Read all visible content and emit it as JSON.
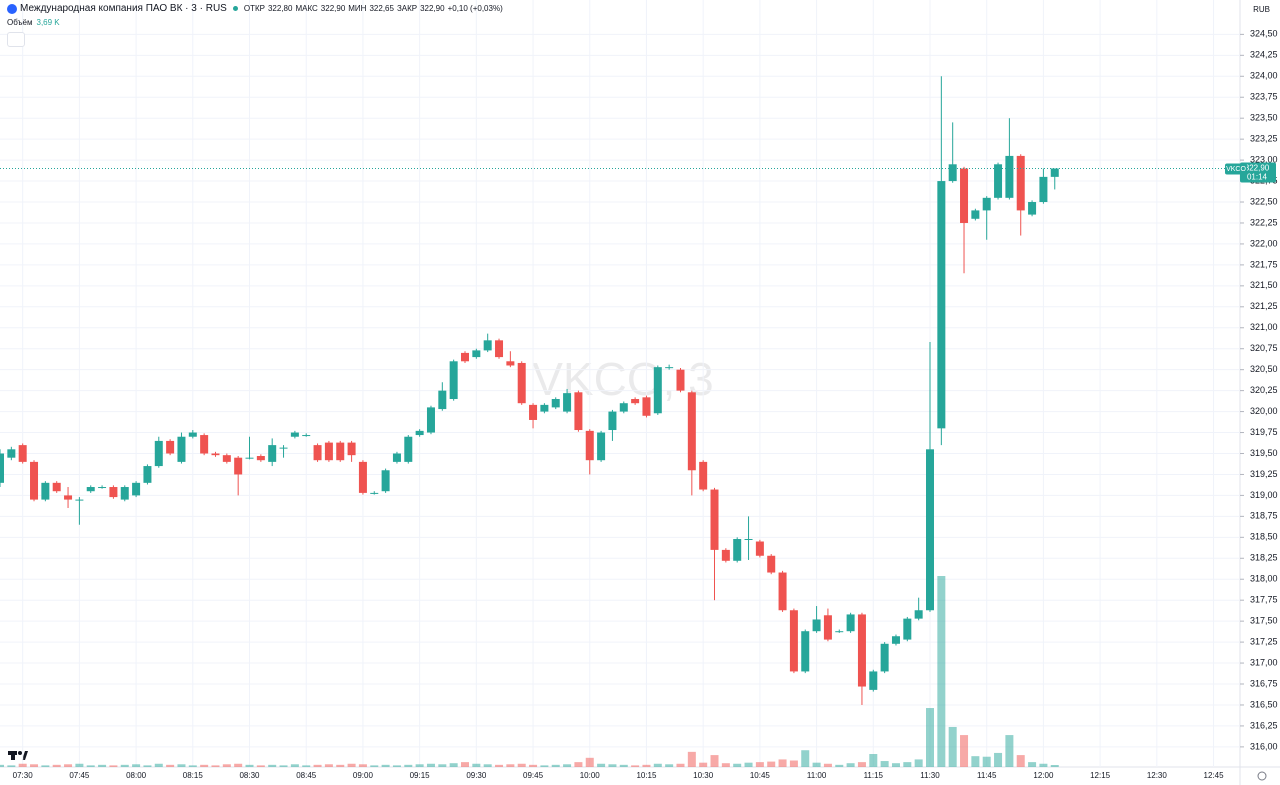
{
  "header": {
    "title": "Международная компания ПАО ВК · 3 · RUS",
    "open_label": "ОТКР",
    "open": "322,80",
    "high_label": "МАКС",
    "high": "322,90",
    "low_label": "МИН",
    "low": "322,65",
    "close_label": "ЗАКР",
    "close": "322,90",
    "change": "+0,10 (+0,03%)",
    "volume_label": "Объём",
    "volume_value": "3,69 K",
    "currency": "RUB"
  },
  "chart_data": {
    "type": "candlestick",
    "watermark": "VKCO, 3",
    "up_color": "#26a69a",
    "down_color": "#ef5350",
    "grid": true,
    "x": [
      "07:24",
      "07:27",
      "07:30",
      "07:33",
      "07:36",
      "07:39",
      "07:42",
      "07:45",
      "07:48",
      "07:51",
      "07:54",
      "07:57",
      "08:00",
      "08:03",
      "08:06",
      "08:09",
      "08:12",
      "08:15",
      "08:18",
      "08:21",
      "08:24",
      "08:27",
      "08:30",
      "08:33",
      "08:36",
      "08:39",
      "08:42",
      "08:45",
      "08:48",
      "08:51",
      "08:54",
      "08:57",
      "09:00",
      "09:03",
      "09:06",
      "09:09",
      "09:12",
      "09:15",
      "09:18",
      "09:21",
      "09:24",
      "09:27",
      "09:30",
      "09:33",
      "09:36",
      "09:39",
      "09:42",
      "09:45",
      "09:48",
      "09:51",
      "09:54",
      "09:57",
      "10:00",
      "10:03",
      "10:06",
      "10:09",
      "10:12",
      "10:15",
      "10:18",
      "10:21",
      "10:24",
      "10:27",
      "10:30",
      "10:33",
      "10:36",
      "10:39",
      "10:42",
      "10:45",
      "10:48",
      "10:51",
      "10:54",
      "10:57",
      "11:00",
      "11:03",
      "11:06",
      "11:09",
      "11:12",
      "11:15",
      "11:18",
      "11:21",
      "11:24",
      "11:27",
      "11:30",
      "11:33",
      "11:36",
      "11:39",
      "11:42",
      "11:45",
      "11:48",
      "11:51",
      "11:54",
      "11:57",
      "12:00",
      "12:03"
    ],
    "open": [
      319.15,
      319.45,
      319.6,
      319.4,
      318.95,
      319.15,
      319.0,
      318.95,
      319.05,
      319.1,
      319.1,
      318.95,
      319.0,
      319.15,
      319.35,
      319.65,
      319.4,
      319.7,
      319.72,
      319.5,
      319.48,
      319.45,
      319.45,
      319.47,
      319.4,
      319.57,
      319.7,
      319.72,
      319.6,
      319.63,
      319.63,
      319.63,
      319.4,
      319.03,
      319.05,
      319.4,
      319.4,
      319.72,
      319.75,
      320.03,
      320.15,
      320.7,
      320.65,
      320.73,
      320.85,
      320.6,
      320.58,
      320.08,
      320.0,
      320.05,
      320.0,
      320.23,
      319.77,
      319.42,
      319.78,
      320.0,
      320.15,
      320.17,
      319.98,
      320.52,
      320.5,
      320.23,
      319.4,
      319.07,
      318.35,
      318.22,
      318.47,
      318.45,
      318.28,
      318.08,
      317.63,
      316.9,
      317.38,
      317.57,
      317.38,
      317.38,
      317.58,
      316.68,
      316.9,
      317.23,
      317.28,
      317.53,
      317.63,
      319.8,
      322.75,
      322.9,
      322.3,
      322.4,
      322.55,
      322.55,
      323.05,
      322.35,
      322.5,
      322.8
    ],
    "high": [
      319.55,
      319.58,
      319.62,
      319.42,
      319.17,
      319.17,
      319.1,
      318.98,
      319.12,
      319.12,
      319.12,
      319.12,
      319.17,
      319.37,
      319.7,
      319.67,
      319.75,
      319.78,
      319.74,
      319.52,
      319.5,
      319.47,
      319.7,
      319.49,
      319.68,
      319.6,
      319.77,
      319.74,
      319.62,
      319.65,
      319.65,
      319.65,
      319.42,
      319.05,
      319.32,
      319.52,
      319.72,
      319.79,
      320.07,
      320.35,
      320.62,
      320.72,
      320.75,
      320.93,
      320.87,
      320.72,
      320.6,
      320.1,
      320.1,
      320.17,
      320.27,
      320.25,
      319.79,
      319.77,
      320.02,
      320.12,
      320.17,
      320.19,
      320.55,
      320.56,
      320.52,
      320.25,
      319.42,
      319.09,
      318.37,
      318.5,
      318.75,
      318.47,
      318.3,
      318.1,
      317.65,
      317.4,
      317.68,
      317.65,
      317.4,
      317.6,
      317.6,
      316.92,
      317.25,
      317.34,
      317.55,
      317.78,
      320.83,
      324.0,
      323.45,
      322.92,
      322.42,
      322.57,
      322.97,
      323.5,
      323.07,
      322.52,
      322.9,
      322.9
    ],
    "low": [
      319.1,
      319.42,
      319.38,
      318.93,
      318.93,
      319.03,
      318.85,
      318.65,
      319.03,
      319.08,
      318.96,
      318.93,
      318.98,
      319.13,
      319.33,
      319.48,
      319.38,
      319.68,
      319.48,
      319.46,
      319.38,
      319.0,
      319.43,
      319.4,
      319.35,
      319.45,
      319.68,
      319.7,
      319.4,
      319.4,
      319.4,
      319.4,
      319.01,
      319.01,
      319.03,
      319.38,
      319.38,
      319.7,
      319.73,
      320.01,
      320.13,
      320.58,
      320.63,
      320.71,
      320.63,
      320.53,
      320.08,
      319.8,
      319.98,
      320.03,
      319.98,
      319.76,
      319.25,
      319.4,
      319.65,
      319.98,
      320.08,
      319.93,
      319.96,
      320.5,
      320.23,
      319.0,
      319.05,
      317.75,
      318.2,
      318.2,
      318.23,
      318.26,
      318.06,
      317.61,
      316.88,
      316.88,
      317.36,
      317.26,
      317.36,
      317.36,
      316.5,
      316.66,
      316.88,
      317.21,
      317.26,
      317.51,
      317.61,
      319.6,
      322.73,
      321.65,
      322.28,
      322.05,
      322.53,
      322.53,
      322.1,
      322.33,
      322.48,
      322.65
    ],
    "close": [
      319.5,
      319.55,
      319.4,
      318.95,
      319.15,
      319.05,
      318.95,
      318.95,
      319.1,
      319.1,
      318.98,
      319.1,
      319.15,
      319.35,
      319.65,
      319.5,
      319.7,
      319.75,
      319.5,
      319.48,
      319.4,
      319.25,
      319.45,
      319.42,
      319.6,
      319.57,
      319.75,
      319.72,
      319.42,
      319.42,
      319.42,
      319.48,
      319.03,
      319.03,
      319.3,
      319.5,
      319.7,
      319.77,
      320.05,
      320.25,
      320.6,
      320.6,
      320.73,
      320.85,
      320.65,
      320.55,
      320.1,
      319.9,
      320.08,
      320.15,
      320.22,
      319.78,
      319.42,
      319.75,
      320.0,
      320.1,
      320.1,
      319.95,
      320.53,
      320.53,
      320.25,
      319.3,
      319.07,
      318.35,
      318.22,
      318.48,
      318.48,
      318.28,
      318.08,
      317.63,
      316.9,
      317.38,
      317.52,
      317.28,
      317.38,
      317.58,
      316.72,
      316.9,
      317.23,
      317.32,
      317.53,
      317.63,
      319.55,
      322.75,
      322.95,
      322.25,
      322.4,
      322.55,
      322.95,
      323.05,
      322.4,
      322.5,
      322.8,
      322.9
    ],
    "volume": [
      4,
      3,
      6,
      5,
      3,
      4,
      5,
      6,
      3,
      4,
      3,
      4,
      5,
      3,
      6,
      4,
      5,
      3,
      4,
      3,
      5,
      6,
      4,
      3,
      4,
      3,
      5,
      3,
      4,
      5,
      4,
      6,
      5,
      3,
      4,
      3,
      4,
      5,
      6,
      5,
      7,
      9,
      6,
      5,
      4,
      5,
      6,
      4,
      3,
      4,
      5,
      9,
      17,
      6,
      5,
      4,
      3,
      4,
      6,
      5,
      6,
      28,
      8,
      22,
      7,
      6,
      8,
      9,
      10,
      14,
      12,
      31,
      8,
      6,
      4,
      7,
      9,
      24,
      11,
      7,
      9,
      14,
      109,
      353,
      74,
      59,
      20,
      19,
      26,
      59,
      22,
      9,
      6,
      3.69
    ],
    "ylim": [
      315.76,
      324.91
    ],
    "yticks": [
      {
        "value": 316,
        "label": "316,00"
      },
      {
        "value": 316.25,
        "label": "316,25"
      },
      {
        "value": 316.5,
        "label": "316,50"
      },
      {
        "value": 316.75,
        "label": "316,75"
      },
      {
        "value": 317,
        "label": "317,00"
      },
      {
        "value": 317.25,
        "label": "317,25"
      },
      {
        "value": 317.5,
        "label": "317,50"
      },
      {
        "value": 317.75,
        "label": "317,75"
      },
      {
        "value": 318,
        "label": "318,00"
      },
      {
        "value": 318.25,
        "label": "318,25"
      },
      {
        "value": 318.5,
        "label": "318,50"
      },
      {
        "value": 318.75,
        "label": "318,75"
      },
      {
        "value": 319,
        "label": "319,00"
      },
      {
        "value": 319.25,
        "label": "319,25"
      },
      {
        "value": 319.5,
        "label": "319,50"
      },
      {
        "value": 319.75,
        "label": "319,75"
      },
      {
        "value": 320,
        "label": "320,00"
      },
      {
        "value": 320.25,
        "label": "320,25"
      },
      {
        "value": 320.5,
        "label": "320,50"
      },
      {
        "value": 320.75,
        "label": "320,75"
      },
      {
        "value": 321,
        "label": "321,00"
      },
      {
        "value": 321.25,
        "label": "321,25"
      },
      {
        "value": 321.5,
        "label": "321,50"
      },
      {
        "value": 321.75,
        "label": "321,75"
      },
      {
        "value": 322,
        "label": "322,00"
      },
      {
        "value": 322.25,
        "label": "322,25"
      },
      {
        "value": 322.5,
        "label": "322,50"
      },
      {
        "value": 322.75,
        "label": "322,75"
      },
      {
        "value": 323,
        "label": "323,00"
      },
      {
        "value": 323.25,
        "label": "323,25"
      },
      {
        "value": 323.5,
        "label": "323,50"
      },
      {
        "value": 323.75,
        "label": "323,75"
      },
      {
        "value": 324,
        "label": "324,00"
      },
      {
        "value": 324.25,
        "label": "324,25"
      },
      {
        "value": 324.5,
        "label": "324,50"
      }
    ],
    "xlim": [
      "07:24",
      "12:52"
    ],
    "xticks": [
      "07:30",
      "07:45",
      "08:00",
      "08:15",
      "08:30",
      "08:45",
      "09:00",
      "09:15",
      "09:30",
      "09:45",
      "10:00",
      "10:15",
      "10:30",
      "10:45",
      "11:00",
      "11:15",
      "11:30",
      "11:45",
      "12:00",
      "12:15",
      "12:30",
      "12:45"
    ],
    "last_price": {
      "value": 322.9,
      "label": "322,90",
      "symbol": "VKCO",
      "countdown": "01:14"
    }
  }
}
